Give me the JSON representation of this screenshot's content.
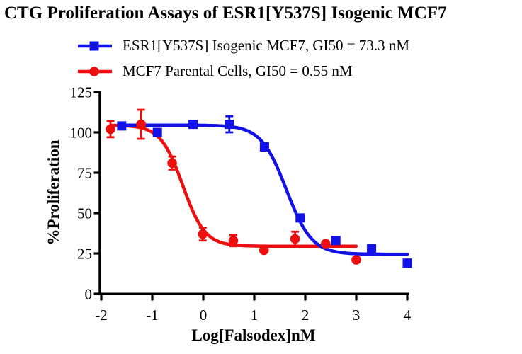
{
  "title": "CTG Proliferation Assays of ESR1[Y537S] Isogenic MCF7",
  "legend": {
    "items": [
      {
        "label": "ESR1[Y537S] Isogenic MCF7, GI50 = 73.3 nM",
        "marker": "square",
        "color": "#1111e8"
      },
      {
        "label": "MCF7 Parental Cells, GI50 = 0.55 nM",
        "marker": "circle",
        "color": "#ee0e0e"
      }
    ]
  },
  "axes": {
    "x_label": "Log[Falsodex]nM",
    "y_label": "%Proliferation"
  },
  "chart_data": {
    "type": "line",
    "subtype": "dose-response-4PL",
    "title": "CTG Proliferation Assays of ESR1[Y537S] Isogenic MCF7",
    "xlabel": "Log[Falsodex]nM",
    "ylabel": "%Proliferation",
    "xlim": [
      -2,
      4
    ],
    "ylim": [
      0,
      125
    ],
    "xticks": [
      -2,
      -1,
      0,
      1,
      2,
      3,
      4
    ],
    "yticks": [
      0,
      25,
      50,
      75,
      100,
      125
    ],
    "grid": false,
    "legend_position": "top-left",
    "axis_color": "#000000",
    "series": [
      {
        "name": "ESR1[Y537S] Isogenic MCF7",
        "gi50": "73.3 nM",
        "color": "#1111e8",
        "marker": "square",
        "x": [
          -1.6,
          -0.9,
          -0.2,
          0.51,
          1.2,
          1.9,
          2.6,
          3.3,
          4.0
        ],
        "y": [
          104,
          100,
          105,
          105,
          91,
          47,
          33,
          28,
          19
        ],
        "yerr": [
          0,
          0,
          0,
          5,
          0,
          0,
          0,
          0,
          0
        ],
        "fit": {
          "top": 104.5,
          "bottom": 24.5,
          "loggi50": 1.63,
          "hill": 1.75,
          "x_start": -1.6,
          "x_end": 4.0
        }
      },
      {
        "name": "MCF7 Parental Cells",
        "gi50": "0.55 nM",
        "color": "#ee0e0e",
        "marker": "circle",
        "x": [
          -1.82,
          -1.22,
          -0.61,
          -0.01,
          0.59,
          1.19,
          1.8,
          2.4,
          3.0
        ],
        "y": [
          102,
          105,
          81,
          37,
          33,
          27,
          34,
          31,
          21
        ],
        "yerr": [
          5,
          9,
          4,
          4,
          3.5,
          0,
          4.5,
          0,
          0
        ],
        "fit": {
          "top": 104.5,
          "bottom": 29.5,
          "loggi50": -0.4,
          "hill": 2.0,
          "x_start": -1.82,
          "x_end": 3.0
        }
      }
    ]
  }
}
